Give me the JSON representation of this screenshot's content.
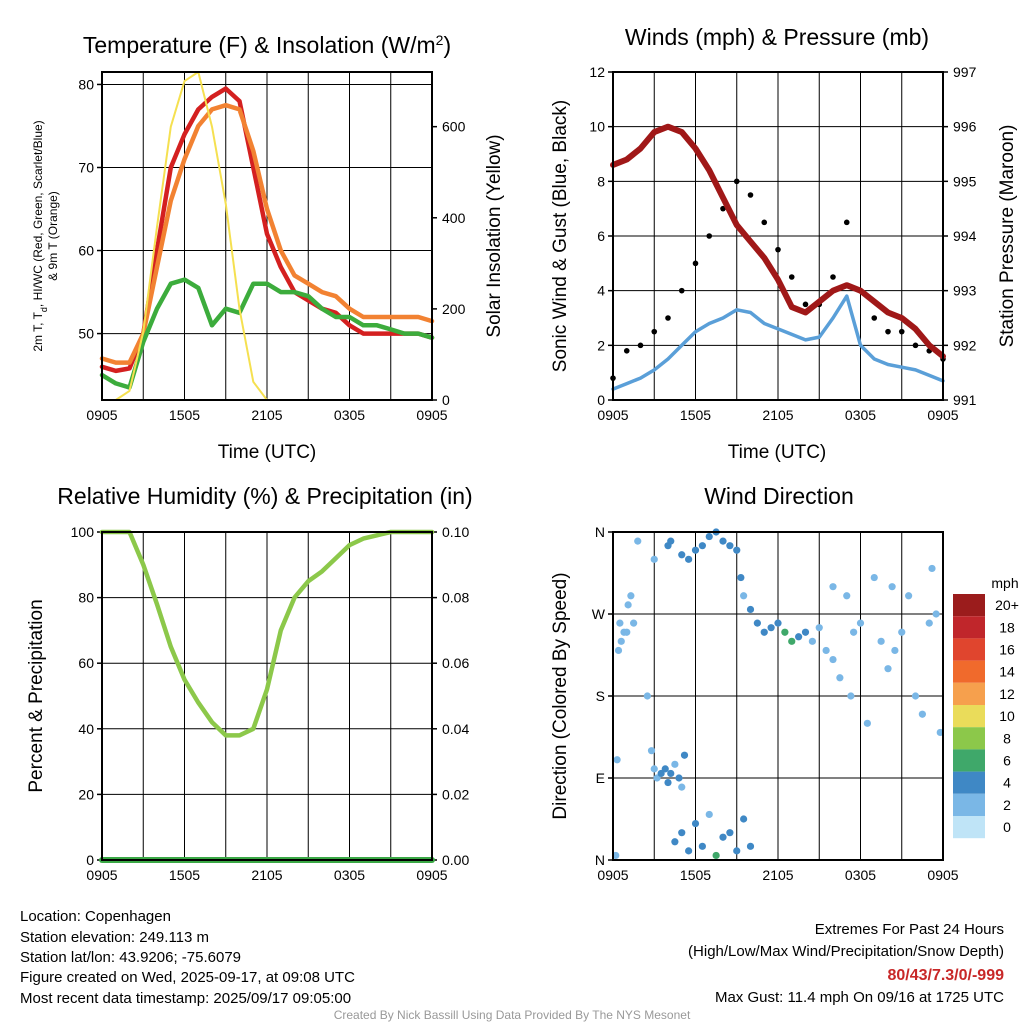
{
  "chart_data": [
    {
      "type": "line",
      "title_main": "Temperature (F) & Insolation (W/m",
      "title_sup": "2",
      "title_close": ")",
      "xlabel": "Time (UTC)",
      "ylabel_line1": "2m T, T",
      "ylabel_sub": "d",
      "ylabel_line1_rest": ", HI/WC (Red, Green, Scarlet/Blue)",
      "ylabel_line2": "& 9m T (Orange)",
      "ylabel_right": "Solar Insolation (Yellow)",
      "x_ticks": [
        "0905",
        "1505",
        "2105",
        "0305",
        "0905"
      ],
      "y_ticks": [
        "50",
        "60",
        "70",
        "80"
      ],
      "y_right_ticks": [
        "0",
        "200",
        "400",
        "600"
      ],
      "xlim": [
        0,
        24
      ],
      "ylim": [
        42,
        81.5
      ],
      "y_right_lim": [
        0,
        720
      ],
      "colors": {
        "temp": "#d42020",
        "temp9m": "#f28232",
        "dew": "#3cac3c",
        "sol": "#f5e050"
      },
      "x": [
        0,
        1,
        2,
        3,
        4,
        5,
        6,
        7,
        8,
        9,
        10,
        11,
        12,
        13,
        14,
        15,
        16,
        17,
        18,
        19,
        20,
        21,
        22,
        23,
        24
      ],
      "series": [
        {
          "key": "temp",
          "values": [
            46,
            45.5,
            45.8,
            50,
            60,
            70,
            74,
            77,
            78.5,
            79.5,
            78,
            70,
            62,
            58,
            55,
            54,
            53,
            52.5,
            51,
            50,
            50,
            50,
            50,
            50,
            49.5
          ]
        },
        {
          "key": "temp9m",
          "values": [
            47,
            46.5,
            46.5,
            50,
            58,
            66,
            71,
            75,
            77,
            77.5,
            77,
            72,
            65,
            60,
            57,
            56,
            55,
            54.5,
            53,
            52,
            52,
            52,
            52,
            52,
            51.5
          ]
        },
        {
          "key": "dew",
          "values": [
            45,
            44,
            43.5,
            49,
            53,
            56,
            56.5,
            55.5,
            51,
            53,
            52.5,
            56,
            56,
            55,
            55,
            54.5,
            53,
            52,
            52,
            51,
            51,
            50.5,
            50,
            50,
            49.5
          ]
        },
        {
          "key": "sol",
          "values": [
            0,
            0,
            20,
            150,
            380,
            600,
            700,
            720,
            600,
            430,
            200,
            40,
            0,
            0,
            0,
            0,
            0,
            0,
            0,
            0,
            0,
            0,
            0,
            0,
            0
          ]
        }
      ]
    },
    {
      "type": "line",
      "title": "Winds (mph) & Pressure (mb)",
      "xlabel": "Time (UTC)",
      "ylabel": "Sonic Wind & Gust (Blue, Black)",
      "ylabel_right": "Station Pressure (Maroon)",
      "x_ticks": [
        "0905",
        "1505",
        "2105",
        "0305",
        "0905"
      ],
      "y_ticks": [
        "0",
        "2",
        "4",
        "6",
        "8",
        "10",
        "12"
      ],
      "y_right_ticks": [
        "991",
        "992",
        "993",
        "994",
        "995",
        "996",
        "997"
      ],
      "xlim": [
        0,
        24
      ],
      "ylim": [
        0,
        12
      ],
      "y_right_lim": [
        991,
        997
      ],
      "colors": {
        "wind": "#5a9fd8",
        "gust": "#000000",
        "pressure": "#a01818"
      },
      "x": [
        0,
        1,
        2,
        3,
        4,
        5,
        6,
        7,
        8,
        9,
        10,
        11,
        12,
        13,
        14,
        15,
        16,
        17,
        18,
        19,
        20,
        21,
        22,
        23,
        24
      ],
      "series": [
        {
          "key": "wind",
          "values": [
            0.4,
            0.6,
            0.8,
            1.1,
            1.5,
            2,
            2.5,
            2.8,
            3,
            3.3,
            3.2,
            2.8,
            2.6,
            2.4,
            2.2,
            2.3,
            3,
            3.8,
            2,
            1.5,
            1.3,
            1.2,
            1.1,
            0.9,
            0.7
          ]
        },
        {
          "key": "gust",
          "values": [
            0.8,
            1.8,
            2,
            2.5,
            3,
            4,
            5,
            6,
            7,
            8,
            7.5,
            6.5,
            5.5,
            4.5,
            3.5,
            3.5,
            4.5,
            6.5,
            4,
            3,
            2.5,
            2.5,
            2,
            1.8,
            1.5
          ]
        },
        {
          "key": "pressure",
          "values": [
            995.3,
            995.4,
            995.6,
            995.9,
            996,
            995.9,
            995.6,
            995.2,
            994.7,
            994.2,
            993.9,
            993.6,
            993.2,
            992.7,
            992.6,
            992.8,
            993,
            993.1,
            993,
            992.8,
            992.6,
            992.5,
            992.3,
            992.0,
            991.8
          ]
        }
      ]
    },
    {
      "type": "line",
      "title": "Relative Humidity (%) & Precipitation (in)",
      "ylabel": "Percent & Precipitation",
      "x_ticks": [
        "0905",
        "1505",
        "2105",
        "0305",
        "0905"
      ],
      "y_ticks": [
        "0",
        "20",
        "40",
        "60",
        "80",
        "100"
      ],
      "y_right_ticks": [
        "0.00",
        "0.02",
        "0.04",
        "0.06",
        "0.08",
        "0.10"
      ],
      "xlim": [
        0,
        24
      ],
      "ylim": [
        0,
        100
      ],
      "y_right_lim": [
        0,
        0.1
      ],
      "colors": {
        "rh": "#8cc84a",
        "precip": "#3aa845"
      },
      "x": [
        0,
        1,
        2,
        3,
        4,
        5,
        6,
        7,
        8,
        9,
        10,
        11,
        12,
        13,
        14,
        15,
        16,
        17,
        18,
        19,
        20,
        21,
        22,
        23,
        24
      ],
      "series": [
        {
          "key": "rh",
          "values": [
            100,
            100,
            100,
            90,
            78,
            65,
            55,
            48,
            42,
            38,
            38,
            40,
            52,
            70,
            80,
            85,
            88,
            92,
            96,
            98,
            99,
            100,
            100,
            100,
            100
          ]
        },
        {
          "key": "precip",
          "values": [
            0,
            0,
            0,
            0,
            0,
            0,
            0,
            0,
            0,
            0,
            0,
            0,
            0,
            0,
            0,
            0,
            0,
            0,
            0,
            0,
            0,
            0,
            0,
            0,
            0
          ]
        }
      ]
    },
    {
      "type": "scatter",
      "title": "Wind Direction",
      "ylabel": "Direction (Colored By Speed)",
      "x_ticks": [
        "0905",
        "1505",
        "2105",
        "0305",
        "0905"
      ],
      "y_ticks": [
        "N",
        "E",
        "S",
        "W",
        "N"
      ],
      "xlim": [
        0,
        24
      ],
      "ylim": [
        0,
        360
      ],
      "colorbar_title": "mph",
      "colorbar_labels": [
        "20+",
        "18",
        "16",
        "14",
        "12",
        "10",
        "8",
        "6",
        "4",
        "2",
        "0"
      ],
      "colorbar_colors": [
        "#9b1c1c",
        "#c0262b",
        "#e0452e",
        "#f06a2c",
        "#f6a04d",
        "#eadc5a",
        "#8cc84a",
        "#3fa86a",
        "#3f88c5",
        "#7ab7e6",
        "#bfe4f7"
      ],
      "points": [
        [
          0.2,
          5,
          1
        ],
        [
          0.3,
          110,
          1
        ],
        [
          0.4,
          230,
          1
        ],
        [
          0.5,
          260,
          1
        ],
        [
          0.6,
          240,
          1
        ],
        [
          0.8,
          250,
          1
        ],
        [
          1,
          250,
          2
        ],
        [
          1.1,
          280,
          1
        ],
        [
          1.3,
          290,
          1
        ],
        [
          1.5,
          260,
          1
        ],
        [
          1.8,
          350,
          1
        ],
        [
          2.5,
          180,
          1
        ],
        [
          3.0,
          330,
          1
        ],
        [
          2.8,
          120,
          2
        ],
        [
          3,
          100,
          2
        ],
        [
          3.2,
          90,
          2
        ],
        [
          3.5,
          95,
          3
        ],
        [
          3.8,
          100,
          3
        ],
        [
          4,
          85,
          3
        ],
        [
          4.2,
          95,
          3
        ],
        [
          4.5,
          105,
          2
        ],
        [
          4.8,
          90,
          3
        ],
        [
          5,
          80,
          2
        ],
        [
          5.2,
          115,
          3
        ],
        [
          4.5,
          20,
          3
        ],
        [
          5,
          30,
          3
        ],
        [
          5.5,
          10,
          4
        ],
        [
          6,
          40,
          3
        ],
        [
          6.5,
          15,
          4
        ],
        [
          7,
          50,
          2
        ],
        [
          7.5,
          5,
          6
        ],
        [
          8,
          25,
          3
        ],
        [
          8.5,
          30,
          3
        ],
        [
          9,
          10,
          3
        ],
        [
          9.5,
          45,
          4
        ],
        [
          10,
          15,
          3
        ],
        [
          4,
          345,
          3
        ],
        [
          4.2,
          350,
          3
        ],
        [
          5,
          335,
          4
        ],
        [
          5.5,
          330,
          3
        ],
        [
          6,
          340,
          4
        ],
        [
          6.5,
          345,
          3
        ],
        [
          7,
          355,
          3
        ],
        [
          7.5,
          360,
          3
        ],
        [
          8,
          350,
          3
        ],
        [
          8.5,
          345,
          4
        ],
        [
          9,
          340,
          3
        ],
        [
          9.3,
          310,
          3
        ],
        [
          9.5,
          290,
          2
        ],
        [
          10,
          275,
          3
        ],
        [
          10.5,
          260,
          3
        ],
        [
          11,
          250,
          4
        ],
        [
          11.5,
          255,
          3
        ],
        [
          12,
          260,
          3
        ],
        [
          12.5,
          250,
          5
        ],
        [
          13,
          240,
          6
        ],
        [
          13.5,
          245,
          3
        ],
        [
          14,
          250,
          3
        ],
        [
          14.5,
          240,
          2
        ],
        [
          15,
          255,
          2
        ],
        [
          15.5,
          230,
          2
        ],
        [
          16,
          300,
          1
        ],
        [
          16,
          220,
          1
        ],
        [
          16.5,
          200,
          1
        ],
        [
          17,
          290,
          1
        ],
        [
          17.3,
          180,
          2
        ],
        [
          17.5,
          250,
          2
        ],
        [
          18,
          260,
          1
        ],
        [
          18.5,
          150,
          1
        ],
        [
          19,
          310,
          1
        ],
        [
          19.5,
          240,
          1
        ],
        [
          20,
          210,
          1
        ],
        [
          20.3,
          300,
          1
        ],
        [
          20.5,
          230,
          1
        ],
        [
          21,
          250,
          1
        ],
        [
          21.5,
          290,
          1
        ],
        [
          22,
          180,
          1
        ],
        [
          22.5,
          160,
          1
        ],
        [
          23,
          260,
          1
        ],
        [
          23.2,
          320,
          1
        ],
        [
          23.5,
          270,
          1
        ],
        [
          23.8,
          140,
          1
        ]
      ]
    }
  ],
  "footer": {
    "location": "Location: Copenhagen",
    "elevation": "Station elevation: 249.113 m",
    "latlon": "Station lat/lon: 43.9206; -75.6079",
    "created": "Figure created on Wed, 2025-09-17, at 09:08 UTC",
    "recent": "Most recent data timestamp: 2025/09/17 09:05:00",
    "extremes_title": "Extremes For Past 24 Hours",
    "extremes_sub": "(High/Low/Max Wind/Precipitation/Snow Depth)",
    "extremes_values": "80/43/7.3/0/-999",
    "max_gust": "Max Gust: 11.4 mph On 09/16 at 1725 UTC",
    "credit": "Created By Nick Bassill Using Data Provided By The NYS Mesonet"
  }
}
